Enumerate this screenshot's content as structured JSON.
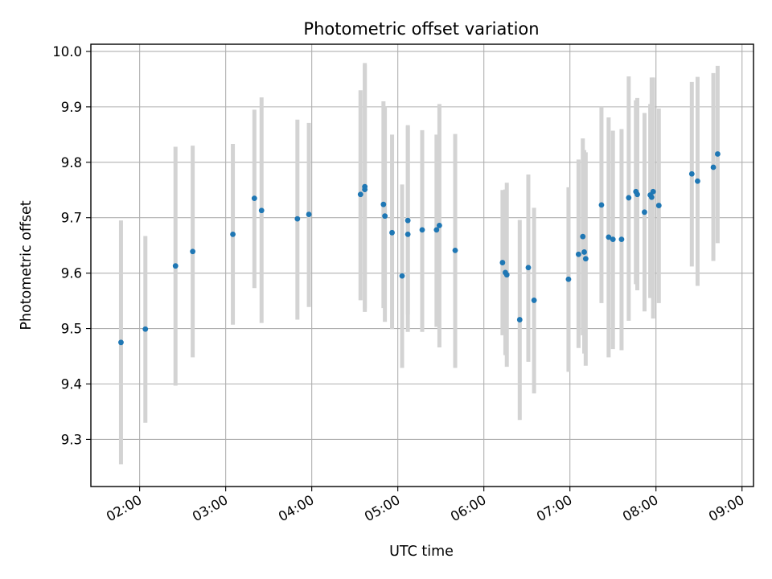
{
  "chart_data": {
    "type": "scatter",
    "title": "Photometric offset variation",
    "xlabel": "UTC time",
    "ylabel": "Photometric offset",
    "x_unit": "hours UTC",
    "xlim": [
      "01:26",
      "09:08"
    ],
    "ylim": [
      9.215,
      10.013
    ],
    "grid": true,
    "legend": "none",
    "point_color": "#1f77b4",
    "errorbar_color": "#d3d3d3",
    "x_ticks": [
      "02:00",
      "03:00",
      "04:00",
      "05:00",
      "06:00",
      "07:00",
      "08:00",
      "09:00"
    ],
    "y_ticks": [
      "9.3",
      "9.4",
      "9.5",
      "9.6",
      "9.7",
      "9.8",
      "9.9",
      "10.0"
    ],
    "series": [
      {
        "x": [
          "01:47",
          "02:04",
          "02:25",
          "02:37",
          "03:05",
          "03:20",
          "03:25",
          "03:50",
          "03:58",
          "04:34",
          "04:37",
          "04:37",
          "04:50",
          "04:51",
          "04:56",
          "05:03",
          "05:07",
          "05:07",
          "05:17",
          "05:27",
          "05:29",
          "05:40",
          "06:13",
          "06:15",
          "06:16",
          "06:25",
          "06:31",
          "06:35",
          "06:59",
          "07:06",
          "07:09",
          "07:10",
          "07:11",
          "07:22",
          "07:27",
          "07:30",
          "07:36",
          "07:41",
          "07:46",
          "07:47",
          "07:52",
          "07:56",
          "07:57",
          "07:58",
          "08:02",
          "08:25",
          "08:29",
          "08:40",
          "08:43"
        ],
        "y": [
          9.475,
          9.499,
          9.613,
          9.639,
          9.67,
          9.735,
          9.713,
          9.698,
          9.706,
          9.742,
          9.751,
          9.756,
          9.724,
          9.703,
          9.673,
          9.595,
          9.67,
          9.695,
          9.678,
          9.678,
          9.686,
          9.641,
          9.619,
          9.601,
          9.597,
          9.516,
          9.61,
          9.551,
          9.589,
          9.634,
          9.666,
          9.638,
          9.626,
          9.723,
          9.665,
          9.661,
          9.661,
          9.736,
          9.747,
          9.742,
          9.71,
          9.741,
          9.737,
          9.747,
          9.722,
          9.779,
          9.766,
          9.791,
          9.815
        ],
        "yerr_low": [
          9.255,
          9.33,
          9.397,
          9.448,
          9.507,
          9.573,
          9.51,
          9.516,
          9.539,
          9.551,
          9.536,
          9.53,
          9.537,
          9.512,
          9.499,
          9.429,
          9.494,
          9.525,
          9.494,
          9.503,
          9.466,
          9.429,
          9.488,
          9.452,
          9.431,
          9.335,
          9.44,
          9.383,
          9.422,
          9.465,
          9.488,
          9.455,
          9.433,
          9.546,
          9.448,
          9.463,
          9.461,
          9.514,
          9.58,
          9.569,
          9.531,
          9.555,
          9.578,
          9.518,
          9.546,
          9.612,
          9.577,
          9.622,
          9.654
        ],
        "yerr_high": [
          9.695,
          9.667,
          9.828,
          9.83,
          9.833,
          9.895,
          9.917,
          9.877,
          9.871,
          9.93,
          9.975,
          9.979,
          9.91,
          9.9,
          9.85,
          9.76,
          9.867,
          9.865,
          9.858,
          9.85,
          9.905,
          9.851,
          9.75,
          9.751,
          9.763,
          9.696,
          9.778,
          9.718,
          9.755,
          9.805,
          9.843,
          9.822,
          9.818,
          9.9,
          9.881,
          9.857,
          9.86,
          9.955,
          9.912,
          9.916,
          9.889,
          9.905,
          9.953,
          9.953,
          9.897,
          9.945,
          9.954,
          9.961,
          9.974
        ]
      }
    ]
  }
}
